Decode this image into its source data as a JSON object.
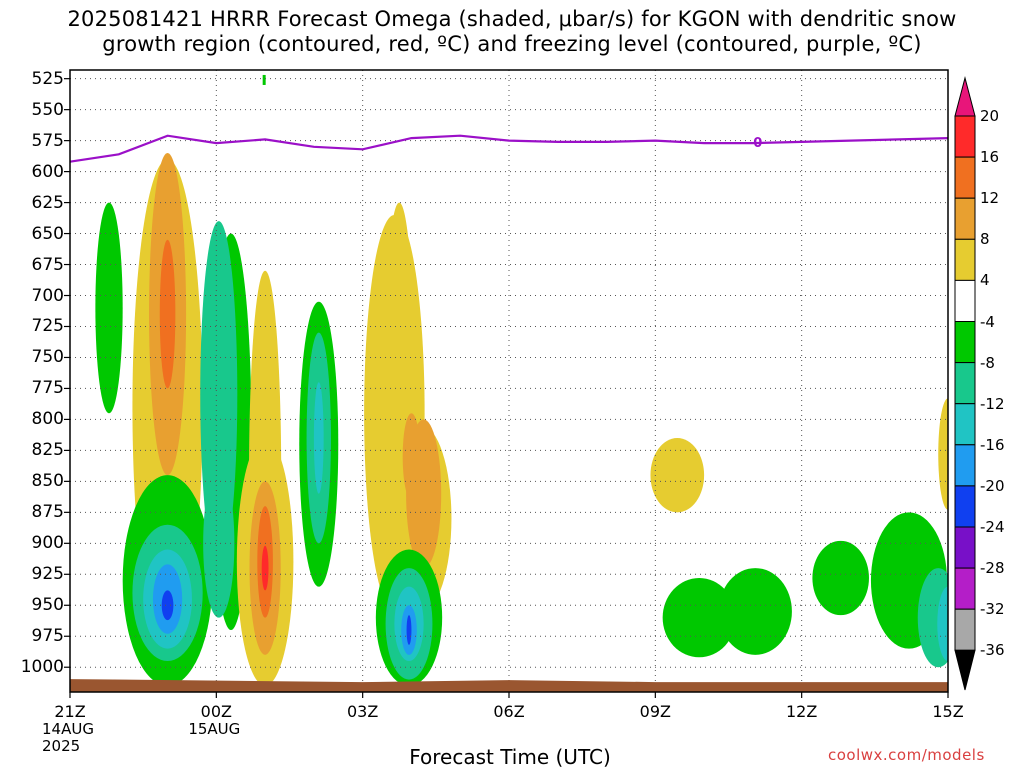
{
  "title": {
    "line1": "2025081421 HRRR Forecast Omega (shaded, μbar/s) for KGON with dendritic snow",
    "line2": "growth region (contoured, red, ºC) and freezing level (contoured, purple, ºC)"
  },
  "xlabel": "Forecast Time (UTC)",
  "credit": "coolwx.com/models",
  "freezing_label": "0",
  "colorbar": {
    "labels": [
      "20",
      "16",
      "12",
      "8",
      "4",
      "-4",
      "-8",
      "-12",
      "-16",
      "-20",
      "-24",
      "-28",
      "-32",
      "-36"
    ],
    "colors": [
      "#ff2a2a",
      "#f07020",
      "#e8a030",
      "#e6cc30",
      "#ffffff",
      "#00c800",
      "#18c88c",
      "#20c4c4",
      "#209cf0",
      "#1040f0",
      "#7810c8",
      "#b41ec8",
      "#a8a8a8"
    ],
    "top_arrow_color": "#e8157a",
    "bottom_arrow_color": "#000000"
  },
  "chart_data": {
    "type": "heatmap",
    "title": "2025081421 HRRR Forecast Omega (shaded, μbar/s) for KGON with dendritic snow growth region (contoured, red, ºC) and freezing level (contoured, purple, ºC)",
    "xlabel": "Forecast Time (UTC)",
    "ylabel": "",
    "x_ticks": [
      "21Z",
      "00Z",
      "03Z",
      "06Z",
      "09Z",
      "12Z",
      "15Z"
    ],
    "x_tick_hours": [
      0,
      3,
      6,
      9,
      12,
      15,
      18
    ],
    "x_sublabels": [
      {
        "hour": 0,
        "lines": [
          "14AUG",
          "2025"
        ]
      },
      {
        "hour": 3,
        "lines": [
          "15AUG"
        ]
      }
    ],
    "y_ticks": [
      525,
      550,
      575,
      600,
      625,
      650,
      675,
      700,
      725,
      750,
      775,
      800,
      825,
      850,
      875,
      900,
      925,
      950,
      975,
      1000
    ],
    "ylim": [
      1020,
      518
    ],
    "xlim": [
      0,
      18
    ],
    "grid": true,
    "colorbar_levels": [
      20,
      16,
      12,
      8,
      4,
      -4,
      -8,
      -12,
      -16,
      -20,
      -24,
      -28,
      -32,
      -36
    ],
    "freezing_level_0C": {
      "hours": [
        0,
        1,
        2,
        3,
        4,
        5,
        6,
        7,
        8,
        9,
        10,
        11,
        12,
        13,
        14,
        15,
        16,
        17,
        18
      ],
      "pressure": [
        592,
        586,
        571,
        577,
        574,
        580,
        582,
        573,
        571,
        575,
        576,
        576,
        575,
        577,
        577,
        576,
        575,
        574,
        573
      ]
    },
    "surface_pressure": 1012
  }
}
